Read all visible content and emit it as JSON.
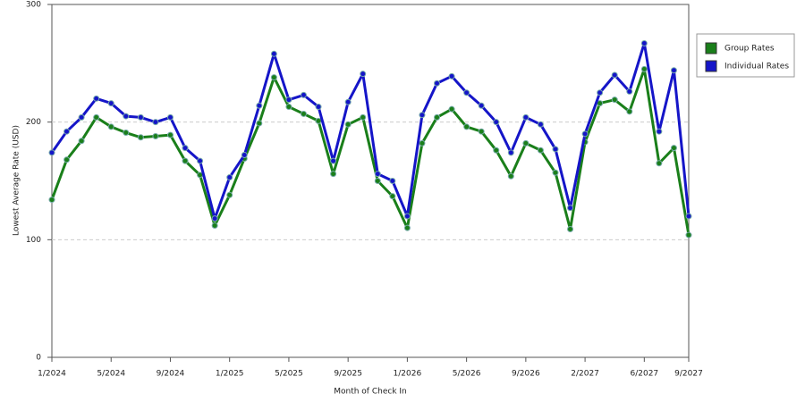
{
  "chart_data": {
    "type": "line",
    "x_label": "Month of Check In",
    "y_label": "Lowest Average Rate (USD)",
    "categories": [
      "1/2024",
      null,
      null,
      null,
      "5/2024",
      null,
      null,
      null,
      "9/2024",
      null,
      null,
      null,
      "1/2025",
      null,
      null,
      null,
      "5/2025",
      null,
      null,
      null,
      "9/2025",
      null,
      null,
      null,
      "1/2026",
      null,
      null,
      null,
      "5/2026",
      null,
      null,
      null,
      "9/2026",
      null,
      null,
      null,
      "2/2027",
      null,
      null,
      null,
      "6/2027",
      null,
      null,
      "9/2027"
    ],
    "series": [
      {
        "name": "Group Rates",
        "color": "#1a7f1a",
        "values": [
          134,
          168,
          184,
          204,
          196,
          191,
          187,
          188,
          189,
          167,
          155,
          112,
          138,
          169,
          199,
          238,
          213,
          207,
          201,
          156,
          198,
          204,
          150,
          137,
          110,
          182,
          204,
          211,
          196,
          192,
          176,
          154,
          182,
          176,
          157,
          109,
          183,
          216,
          219,
          209,
          245,
          165,
          178,
          104
        ]
      },
      {
        "name": "Individual Rates",
        "color": "#1515c8",
        "values": [
          174,
          192,
          204,
          220,
          216,
          205,
          204,
          200,
          204,
          178,
          167,
          118,
          153,
          172,
          214,
          258,
          219,
          223,
          213,
          167,
          217,
          241,
          156,
          150,
          120,
          206,
          233,
          239,
          225,
          214,
          200,
          174,
          204,
          198,
          177,
          127,
          190,
          225,
          240,
          226,
          267,
          192,
          244,
          120
        ]
      }
    ],
    "ylim": [
      0,
      300
    ],
    "yticks": [
      0,
      100,
      200,
      300
    ],
    "grid": true,
    "legend": "right"
  }
}
